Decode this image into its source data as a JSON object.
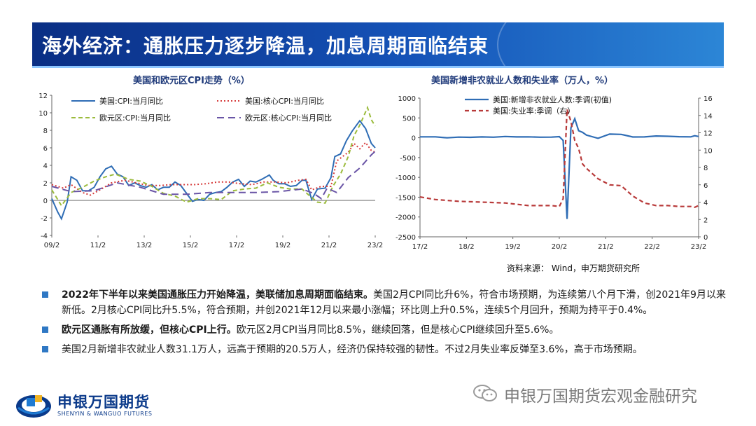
{
  "slide": {
    "title": "海外经济：通胀压力逐步降温，加息周期面临结束"
  },
  "chart_data": [
    {
      "type": "line",
      "title": "美国和欧元区CPI走势（%）",
      "x_ticks": [
        "09/2",
        "11/2",
        "13/2",
        "15/2",
        "17/2",
        "19/2",
        "21/2",
        "23/2"
      ],
      "x_range": [
        "2009-02",
        "2023-02"
      ],
      "ylim": [
        -4,
        12
      ],
      "y_ticks": [
        -4,
        -2,
        0,
        2,
        4,
        6,
        8,
        10,
        12
      ],
      "legend": "top",
      "series": [
        {
          "name": "美国:CPI:当月同比",
          "color": "#2f6db5",
          "style": "solid",
          "points": [
            [
              "2009-02",
              0.2
            ],
            [
              "2009-05",
              -1.3
            ],
            [
              "2009-07",
              -2.1
            ],
            [
              "2009-10",
              -0.2
            ],
            [
              "2009-12",
              2.7
            ],
            [
              "2010-03",
              2.3
            ],
            [
              "2010-06",
              1.1
            ],
            [
              "2010-09",
              1.1
            ],
            [
              "2010-12",
              1.5
            ],
            [
              "2011-03",
              2.7
            ],
            [
              "2011-06",
              3.6
            ],
            [
              "2011-09",
              3.9
            ],
            [
              "2011-12",
              3.0
            ],
            [
              "2012-03",
              2.7
            ],
            [
              "2012-06",
              1.7
            ],
            [
              "2012-09",
              2.0
            ],
            [
              "2012-12",
              1.7
            ],
            [
              "2013-03",
              1.5
            ],
            [
              "2013-06",
              1.8
            ],
            [
              "2013-09",
              1.2
            ],
            [
              "2013-12",
              1.5
            ],
            [
              "2014-03",
              1.5
            ],
            [
              "2014-06",
              2.1
            ],
            [
              "2014-09",
              1.7
            ],
            [
              "2014-12",
              0.8
            ],
            [
              "2015-03",
              -0.1
            ],
            [
              "2015-06",
              0.1
            ],
            [
              "2015-09",
              0.0
            ],
            [
              "2015-12",
              0.7
            ],
            [
              "2016-03",
              0.9
            ],
            [
              "2016-06",
              1.0
            ],
            [
              "2016-09",
              1.5
            ],
            [
              "2016-12",
              2.1
            ],
            [
              "2017-03",
              2.4
            ],
            [
              "2017-06",
              1.6
            ],
            [
              "2017-09",
              2.2
            ],
            [
              "2017-12",
              2.1
            ],
            [
              "2018-03",
              2.4
            ],
            [
              "2018-07",
              2.9
            ],
            [
              "2018-09",
              2.3
            ],
            [
              "2018-12",
              1.9
            ],
            [
              "2019-03",
              1.9
            ],
            [
              "2019-06",
              1.6
            ],
            [
              "2019-09",
              1.7
            ],
            [
              "2019-12",
              2.3
            ],
            [
              "2020-02",
              2.3
            ],
            [
              "2020-05",
              0.1
            ],
            [
              "2020-08",
              1.3
            ],
            [
              "2020-12",
              1.4
            ],
            [
              "2021-03",
              2.6
            ],
            [
              "2021-05",
              5.0
            ],
            [
              "2021-08",
              5.3
            ],
            [
              "2021-11",
              6.8
            ],
            [
              "2022-02",
              7.9
            ],
            [
              "2022-06",
              9.1
            ],
            [
              "2022-09",
              8.2
            ],
            [
              "2022-12",
              6.5
            ],
            [
              "2023-02",
              6.0
            ]
          ]
        },
        {
          "name": "美国:核心CPI:当月同比",
          "color": "#d63a3a",
          "style": "dotted",
          "points": [
            [
              "2009-02",
              1.8
            ],
            [
              "2009-08",
              1.4
            ],
            [
              "2009-12",
              1.8
            ],
            [
              "2010-06",
              0.9
            ],
            [
              "2010-10",
              0.6
            ],
            [
              "2011-03",
              1.2
            ],
            [
              "2011-09",
              2.0
            ],
            [
              "2012-04",
              2.3
            ],
            [
              "2012-10",
              2.0
            ],
            [
              "2013-04",
              1.7
            ],
            [
              "2013-10",
              1.7
            ],
            [
              "2014-04",
              1.8
            ],
            [
              "2014-10",
              1.8
            ],
            [
              "2015-04",
              1.8
            ],
            [
              "2015-10",
              1.9
            ],
            [
              "2016-04",
              2.1
            ],
            [
              "2016-10",
              2.1
            ],
            [
              "2017-04",
              1.9
            ],
            [
              "2017-10",
              1.8
            ],
            [
              "2018-04",
              2.1
            ],
            [
              "2018-10",
              2.1
            ],
            [
              "2019-04",
              2.0
            ],
            [
              "2019-10",
              2.3
            ],
            [
              "2020-02",
              2.4
            ],
            [
              "2020-05",
              1.2
            ],
            [
              "2020-10",
              1.6
            ],
            [
              "2021-03",
              1.6
            ],
            [
              "2021-06",
              4.5
            ],
            [
              "2021-12",
              5.5
            ],
            [
              "2022-03",
              6.5
            ],
            [
              "2022-06",
              5.9
            ],
            [
              "2022-09",
              6.6
            ],
            [
              "2022-12",
              5.7
            ],
            [
              "2023-02",
              5.5
            ]
          ]
        },
        {
          "name": "欧元区:CPI:当月同比",
          "color": "#9bbb3c",
          "style": "dashed",
          "points": [
            [
              "2009-02",
              1.2
            ],
            [
              "2009-07",
              -0.6
            ],
            [
              "2009-12",
              0.9
            ],
            [
              "2010-06",
              1.5
            ],
            [
              "2010-12",
              2.2
            ],
            [
              "2011-06",
              2.7
            ],
            [
              "2011-11",
              3.0
            ],
            [
              "2012-06",
              2.4
            ],
            [
              "2012-12",
              2.2
            ],
            [
              "2013-06",
              1.6
            ],
            [
              "2013-12",
              0.8
            ],
            [
              "2014-06",
              0.5
            ],
            [
              "2014-12",
              -0.2
            ],
            [
              "2015-06",
              0.2
            ],
            [
              "2015-12",
              0.2
            ],
            [
              "2016-06",
              0.1
            ],
            [
              "2016-12",
              1.1
            ],
            [
              "2017-06",
              1.3
            ],
            [
              "2017-12",
              1.4
            ],
            [
              "2018-06",
              2.0
            ],
            [
              "2018-12",
              1.5
            ],
            [
              "2019-06",
              1.3
            ],
            [
              "2019-12",
              1.3
            ],
            [
              "2020-03",
              0.7
            ],
            [
              "2020-08",
              -0.2
            ],
            [
              "2020-12",
              -0.3
            ],
            [
              "2021-04",
              1.6
            ],
            [
              "2021-08",
              3.0
            ],
            [
              "2021-12",
              5.0
            ],
            [
              "2022-03",
              7.4
            ],
            [
              "2022-06",
              8.6
            ],
            [
              "2022-10",
              10.6
            ],
            [
              "2022-12",
              9.2
            ],
            [
              "2023-02",
              8.5
            ]
          ]
        },
        {
          "name": "欧元区:核心CPI:当月同比",
          "color": "#6a55a6",
          "style": "longdash",
          "points": [
            [
              "2009-02",
              1.6
            ],
            [
              "2009-12",
              1.0
            ],
            [
              "2010-12",
              1.1
            ],
            [
              "2011-12",
              2.0
            ],
            [
              "2012-12",
              1.5
            ],
            [
              "2013-12",
              0.7
            ],
            [
              "2014-12",
              0.7
            ],
            [
              "2015-12",
              0.9
            ],
            [
              "2016-12",
              0.9
            ],
            [
              "2017-12",
              0.9
            ],
            [
              "2018-12",
              1.0
            ],
            [
              "2019-12",
              1.3
            ],
            [
              "2020-06",
              0.8
            ],
            [
              "2020-10",
              0.2
            ],
            [
              "2021-01",
              1.4
            ],
            [
              "2021-06",
              0.9
            ],
            [
              "2021-12",
              2.6
            ],
            [
              "2022-06",
              3.7
            ],
            [
              "2022-12",
              5.2
            ],
            [
              "2023-02",
              5.6
            ]
          ]
        }
      ]
    },
    {
      "type": "line",
      "title": "美国新增非农就业人数和失业率（万人，%）",
      "x_ticks": [
        "17/2",
        "18/2",
        "19/2",
        "20/2",
        "21/2",
        "22/2",
        "23/2"
      ],
      "x_range": [
        "2017-02",
        "2023-02"
      ],
      "ylim_left": [
        -2500,
        1000
      ],
      "y_ticks_left": [
        -2500,
        -2000,
        -1500,
        -1000,
        -500,
        0,
        500,
        1000
      ],
      "ylim_right": [
        0,
        16
      ],
      "y_ticks_right": [
        0,
        2,
        4,
        6,
        8,
        10,
        12,
        14,
        16
      ],
      "legend": "top-left",
      "series": [
        {
          "name": "美国:新增非农就业人数:季调(初值)",
          "color": "#2f6db5",
          "style": "solid",
          "axis": "left",
          "points": [
            [
              "2017-02",
              23
            ],
            [
              "2017-06",
              22
            ],
            [
              "2017-09",
              -3
            ],
            [
              "2017-12",
              15
            ],
            [
              "2018-03",
              10
            ],
            [
              "2018-06",
              21
            ],
            [
              "2018-09",
              13
            ],
            [
              "2018-12",
              31
            ],
            [
              "2019-03",
              20
            ],
            [
              "2019-06",
              22
            ],
            [
              "2019-09",
              14
            ],
            [
              "2019-12",
              15
            ],
            [
              "2020-02",
              27
            ],
            [
              "2020-03",
              -70
            ],
            [
              "2020-04",
              -2050
            ],
            [
              "2020-05",
              250
            ],
            [
              "2020-06",
              480
            ],
            [
              "2020-07",
              176
            ],
            [
              "2020-08",
              137
            ],
            [
              "2020-09",
              66
            ],
            [
              "2020-12",
              -14
            ],
            [
              "2021-03",
              92
            ],
            [
              "2021-06",
              85
            ],
            [
              "2021-09",
              19
            ],
            [
              "2021-12",
              20
            ],
            [
              "2022-03",
              43
            ],
            [
              "2022-06",
              37
            ],
            [
              "2022-09",
              26
            ],
            [
              "2022-12",
              22
            ],
            [
              "2023-01",
              51
            ],
            [
              "2023-02",
              31
            ]
          ]
        },
        {
          "name": "美国:失业率:季调（右）",
          "color": "#b83a3a",
          "style": "dashed",
          "axis": "right",
          "points": [
            [
              "2017-02",
              4.6
            ],
            [
              "2017-06",
              4.3
            ],
            [
              "2017-12",
              4.1
            ],
            [
              "2018-06",
              4.0
            ],
            [
              "2018-12",
              3.9
            ],
            [
              "2019-06",
              3.6
            ],
            [
              "2019-12",
              3.6
            ],
            [
              "2020-02",
              3.5
            ],
            [
              "2020-03",
              4.4
            ],
            [
              "2020-04",
              14.7
            ],
            [
              "2020-05",
              13.3
            ],
            [
              "2020-06",
              11.1
            ],
            [
              "2020-07",
              10.2
            ],
            [
              "2020-08",
              8.4
            ],
            [
              "2020-09",
              7.9
            ],
            [
              "2020-12",
              6.7
            ],
            [
              "2021-03",
              6.0
            ],
            [
              "2021-06",
              5.9
            ],
            [
              "2021-09",
              4.7
            ],
            [
              "2021-12",
              3.9
            ],
            [
              "2022-03",
              3.6
            ],
            [
              "2022-06",
              3.6
            ],
            [
              "2022-09",
              3.5
            ],
            [
              "2022-12",
              3.5
            ],
            [
              "2023-01",
              3.4
            ],
            [
              "2023-02",
              3.6
            ]
          ]
        }
      ],
      "source": "资料来源： Wind，申万期货研究所"
    }
  ],
  "bullets": [
    {
      "bold": "2022年下半年以来美国通胀压力开始降温，美联储加息周期面临结束。",
      "text": "美国2月CPI同比升6%，符合市场预期，为连续第八个月下滑，创2021年9月以来新低。2月核心CPI同比升5.5%，符合预期，并创2021年12月以来最小涨幅；环比则上升0.5%，连续5个月回升，预期为持平于0.4%。"
    },
    {
      "bold": "欧元区通胀有所放缓，但核心CPI上行。",
      "text": "欧元区2月CPI当月同比8.5%，继续回落，但是核心CPI继续回升至5.6%。"
    },
    {
      "bold": "",
      "text": "美国2月新增非农就业人数31.1万人，远高于预期的20.5万人，经济仍保持较强的韧性。不过2月失业率反弹至3.6%，高于市场预期。"
    }
  ],
  "logo": {
    "name_cn": "申银万国期货",
    "name_en": "SHENYIN & WANGUO FUTURES"
  },
  "watermark": {
    "text": "申银万国期货宏观金融研究",
    "icon": "wechat-icon"
  }
}
